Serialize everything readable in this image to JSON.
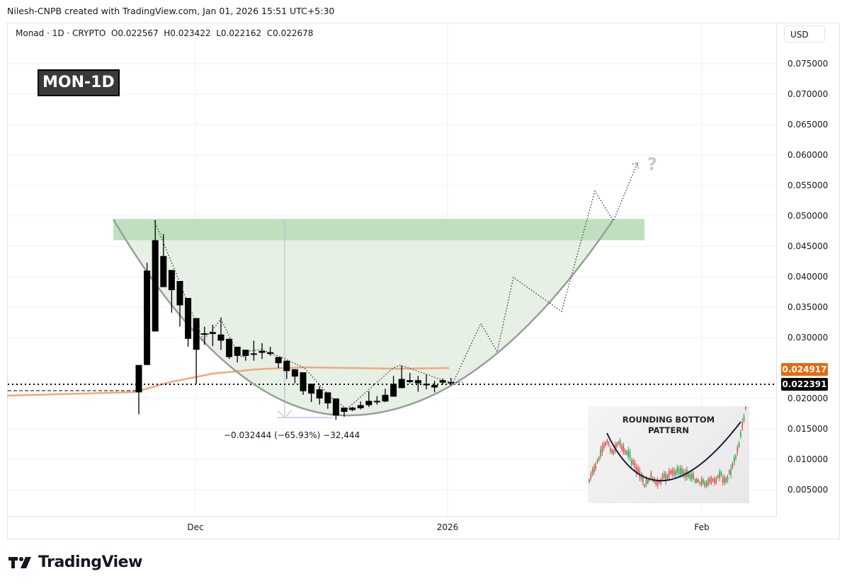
{
  "header": {
    "credit": "Nilesh-CNPB created with TradingView.com, Jan 01, 2026 15:51 UTC+5:30",
    "symbol_line": "Monad · 1D · CRYPTO  O0.022567  H0.023422  L0.022162  C0.022678"
  },
  "tag": "MON-1D",
  "currency": "USD",
  "price_axis": [
    "0.075000",
    "0.070000",
    "0.065000",
    "0.060000",
    "0.055000",
    "0.050000",
    "0.045000",
    "0.040000",
    "0.035000",
    "0.030000",
    "0.020000",
    "0.015000",
    "0.010000",
    "0.005000"
  ],
  "price_tags": {
    "ma": {
      "value": "0.024917",
      "color": "#e8690f"
    },
    "last": {
      "value": "0.022391",
      "color": "#000000"
    }
  },
  "time_axis": [
    {
      "label": "Dec",
      "x": 276
    },
    {
      "label": "2026",
      "x": 632
    },
    {
      "label": "Feb",
      "x": 991
    }
  ],
  "measure_label": "−0.032444 (−65.93%) −32,444",
  "inset": {
    "title_line1": "ROUNDING BOTTOM",
    "title_line2": "PATTERN"
  },
  "question_mark": "?",
  "brand": "TradingView",
  "chart_data": {
    "type": "candlestick",
    "title": "Monad · 1D · CRYPTO",
    "annotation": "MON-1D rounding bottom pattern",
    "ohlc_current": {
      "open": 0.022567,
      "high": 0.023422,
      "low": 0.022162,
      "close": 0.022678
    },
    "last_price": 0.022391,
    "moving_average_last": 0.024917,
    "resistance_zone": [
      0.046,
      0.0495
    ],
    "drawdown": {
      "change": -0.032444,
      "percent": -65.93,
      "ticks": -32444
    },
    "projected_target_area": 0.059,
    "ylim": [
      0.0,
      0.078
    ],
    "yticks": [
      0.005,
      0.01,
      0.015,
      0.02,
      0.03,
      0.035,
      0.04,
      0.045,
      0.05,
      0.055,
      0.06,
      0.065,
      0.07,
      0.075
    ],
    "xticks": [
      "Dec",
      "2026",
      "Feb"
    ],
    "candles": [
      {
        "o": 0.021,
        "h": 0.0254,
        "l": 0.0174,
        "c": 0.0255
      },
      {
        "o": 0.0255,
        "h": 0.0423,
        "l": 0.0255,
        "c": 0.041
      },
      {
        "o": 0.031,
        "h": 0.0493,
        "l": 0.031,
        "c": 0.046
      },
      {
        "o": 0.0434,
        "h": 0.047,
        "l": 0.0383,
        "c": 0.0383
      },
      {
        "o": 0.0411,
        "h": 0.0411,
        "l": 0.0341,
        "c": 0.0378
      },
      {
        "o": 0.0393,
        "h": 0.0393,
        "l": 0.0318,
        "c": 0.0353
      },
      {
        "o": 0.0365,
        "h": 0.0365,
        "l": 0.0285,
        "c": 0.0298
      },
      {
        "o": 0.0332,
        "h": 0.0332,
        "l": 0.0224,
        "c": 0.028
      },
      {
        "o": 0.0307,
        "h": 0.0318,
        "l": 0.0288,
        "c": 0.0307
      },
      {
        "o": 0.0309,
        "h": 0.0321,
        "l": 0.0286,
        "c": 0.0306
      },
      {
        "o": 0.0305,
        "h": 0.0333,
        "l": 0.028,
        "c": 0.0295
      },
      {
        "o": 0.0298,
        "h": 0.0298,
        "l": 0.0265,
        "c": 0.0268
      },
      {
        "o": 0.0285,
        "h": 0.0285,
        "l": 0.0259,
        "c": 0.027
      },
      {
        "o": 0.028,
        "h": 0.028,
        "l": 0.0262,
        "c": 0.027
      },
      {
        "o": 0.0274,
        "h": 0.0295,
        "l": 0.0262,
        "c": 0.0274
      },
      {
        "o": 0.0278,
        "h": 0.0291,
        "l": 0.0265,
        "c": 0.0275
      },
      {
        "o": 0.0276,
        "h": 0.0285,
        "l": 0.027,
        "c": 0.0273
      },
      {
        "o": 0.0268,
        "h": 0.0268,
        "l": 0.025,
        "c": 0.0258
      },
      {
        "o": 0.0262,
        "h": 0.0262,
        "l": 0.0232,
        "c": 0.0245
      },
      {
        "o": 0.0248,
        "h": 0.0248,
        "l": 0.0225,
        "c": 0.0236
      },
      {
        "o": 0.0243,
        "h": 0.0243,
        "l": 0.0206,
        "c": 0.0212
      },
      {
        "o": 0.0224,
        "h": 0.0224,
        "l": 0.0194,
        "c": 0.0208
      },
      {
        "o": 0.0215,
        "h": 0.022,
        "l": 0.019,
        "c": 0.02
      },
      {
        "o": 0.021,
        "h": 0.021,
        "l": 0.0183,
        "c": 0.0192
      },
      {
        "o": 0.02,
        "h": 0.02,
        "l": 0.0165,
        "c": 0.0172
      },
      {
        "o": 0.0185,
        "h": 0.0185,
        "l": 0.017,
        "c": 0.0178
      },
      {
        "o": 0.0181,
        "h": 0.0186,
        "l": 0.0179,
        "c": 0.0185
      },
      {
        "o": 0.0184,
        "h": 0.0195,
        "l": 0.0182,
        "c": 0.0189
      },
      {
        "o": 0.0189,
        "h": 0.0212,
        "l": 0.0186,
        "c": 0.0196
      },
      {
        "o": 0.0196,
        "h": 0.0204,
        "l": 0.019,
        "c": 0.0196
      },
      {
        "o": 0.0195,
        "h": 0.0216,
        "l": 0.0194,
        "c": 0.0206
      },
      {
        "o": 0.0203,
        "h": 0.0237,
        "l": 0.0203,
        "c": 0.0224
      },
      {
        "o": 0.0217,
        "h": 0.0254,
        "l": 0.0217,
        "c": 0.0232
      },
      {
        "o": 0.0227,
        "h": 0.0242,
        "l": 0.0225,
        "c": 0.023
      },
      {
        "o": 0.023,
        "h": 0.0237,
        "l": 0.0211,
        "c": 0.0225
      },
      {
        "o": 0.0224,
        "h": 0.024,
        "l": 0.0215,
        "c": 0.0223
      },
      {
        "o": 0.0222,
        "h": 0.0229,
        "l": 0.021,
        "c": 0.0218
      },
      {
        "o": 0.0226,
        "h": 0.0233,
        "l": 0.0223,
        "c": 0.023
      },
      {
        "o": 0.0226,
        "h": 0.0234,
        "l": 0.0222,
        "c": 0.0227
      }
    ]
  }
}
